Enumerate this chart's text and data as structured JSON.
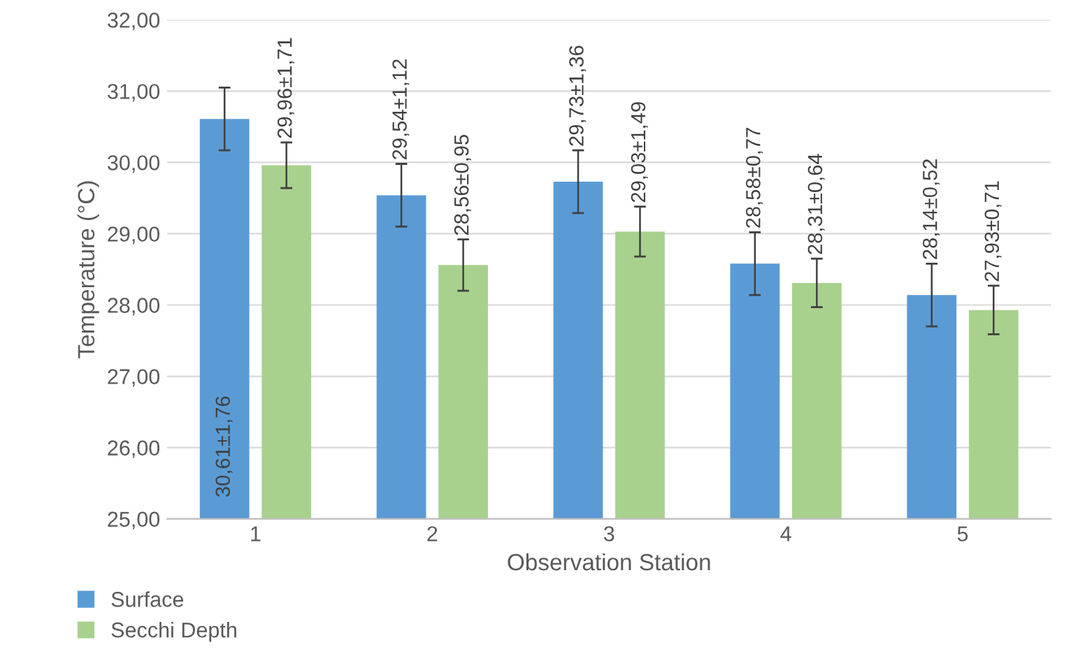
{
  "chart_data": {
    "type": "bar",
    "xlabel": "Observation Station",
    "ylabel": "Temperature (°C)",
    "categories": [
      "1",
      "2",
      "3",
      "4",
      "5"
    ],
    "series": [
      {
        "name": "Surface",
        "color": "#5b9bd5",
        "values": [
          30.61,
          29.54,
          29.73,
          28.58,
          28.14
        ],
        "errors": [
          0.44,
          0.44,
          0.44,
          0.44,
          0.44
        ],
        "value_labels": [
          "30,61±1,76",
          "29,54±1,12",
          "29,73±1,36",
          "28,58±0,77",
          "28,14±0,52"
        ]
      },
      {
        "name": "Secchi Depth",
        "color": "#a9d18e",
        "values": [
          29.96,
          28.56,
          29.03,
          28.31,
          27.93
        ],
        "errors": [
          0.32,
          0.36,
          0.35,
          0.34,
          0.34
        ],
        "value_labels": [
          "29,96±1,71",
          "28,56±0,95",
          "29,03±1,49",
          "28,31±0,64",
          "27,93±0,71"
        ]
      }
    ],
    "ylim": [
      25,
      32
    ],
    "yticks": [
      {
        "value": 25,
        "label": "25,00"
      },
      {
        "value": 26,
        "label": "26,00"
      },
      {
        "value": 27,
        "label": "27,00"
      },
      {
        "value": 28,
        "label": "28,00"
      },
      {
        "value": 29,
        "label": "29,00"
      },
      {
        "value": 30,
        "label": "30,00"
      },
      {
        "value": 31,
        "label": "31,00"
      },
      {
        "value": 32,
        "label": "32,00"
      }
    ],
    "grid": "y",
    "legend": "bottom left"
  }
}
